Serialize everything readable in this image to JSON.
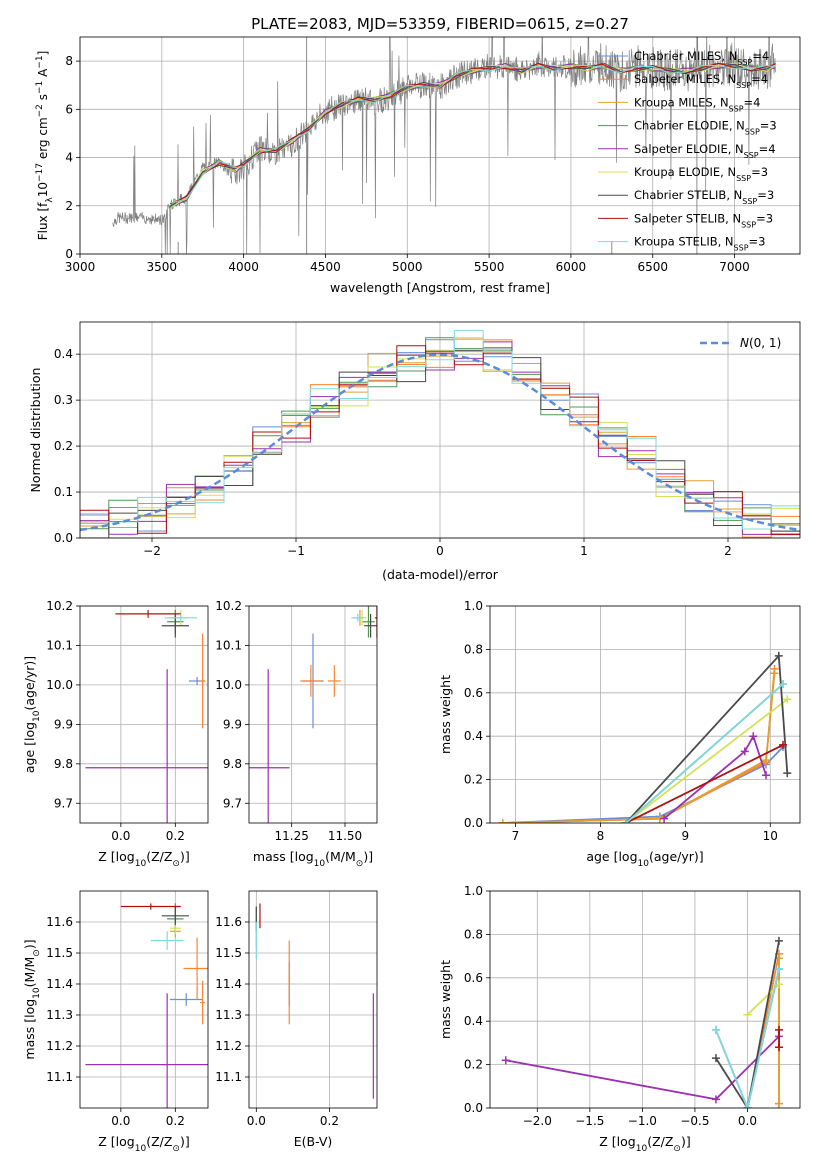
{
  "figure_title": "PLATE=2083, MJD=53359, FIBERID=0615, z=0.27",
  "series_styles": [
    {
      "name": "Chabrier MILES, N$_{SSP}$=4",
      "label_main": "Chabrier MILES, N",
      "label_sub": "SSP",
      "label_tail": "=4",
      "color": "#6b8fd6"
    },
    {
      "name": "Salpeter MILES, N$_{SSP}$=4",
      "label_main": "Salpeter MILES, N",
      "label_sub": "SSP",
      "label_tail": "=4",
      "color": "#ff8533"
    },
    {
      "name": "Kroupa MILES, N$_{SSP}$=4",
      "label_main": "Kroupa MILES, N",
      "label_sub": "SSP",
      "label_tail": "=4",
      "color": "#e0a030"
    },
    {
      "name": "Chabrier ELODIE, N$_{SSP}$=3",
      "label_main": "Chabrier ELODIE, N",
      "label_sub": "SSP",
      "label_tail": "=3",
      "color": "#4f9a4f"
    },
    {
      "name": "Salpeter ELODIE, N$_{SSP}$=4",
      "label_main": "Salpeter ELODIE, N",
      "label_sub": "SSP",
      "label_tail": "=4",
      "color": "#9b30b0"
    },
    {
      "name": "Kroupa ELODIE, N$_{SSP}$=3",
      "label_main": "Kroupa ELODIE, N",
      "label_sub": "SSP",
      "label_tail": "=3",
      "color": "#d4e157"
    },
    {
      "name": "Chabrier STELIB, N$_{SSP}$=3",
      "label_main": "Chabrier STELIB, N",
      "label_sub": "SSP",
      "label_tail": "=3",
      "color": "#4a4a4a"
    },
    {
      "name": "Salpeter STELIB, N$_{SSP}$=3",
      "label_main": "Salpeter STELIB, N",
      "label_sub": "SSP",
      "label_tail": "=3",
      "color": "#b01010"
    },
    {
      "name": "Kroupa STELIB, N$_{SSP}$=3",
      "label_main": "Kroupa STELIB, N",
      "label_sub": "SSP",
      "label_tail": "=3",
      "color": "#80d8e0"
    }
  ],
  "chart_data": [
    {
      "id": "spectrum",
      "type": "line",
      "title": "PLATE=2083, MJD=53359, FIBERID=0615, z=0.27",
      "xlabel": "wavelength [Angstrom, rest frame]",
      "ylabel": "Flux [f$_\\lambda$10$^{-17}$ erg cm$^{-2}$ s$^{-1}$ A$^{-1}$]",
      "ylabel_parts": [
        "Flux [f",
        "λ",
        "10",
        "−17",
        " erg cm",
        "−2",
        " s",
        "−1",
        " A",
        "−1",
        "]"
      ],
      "xlim": [
        3000,
        7400
      ],
      "ylim": [
        0,
        9
      ],
      "xticks": [
        3000,
        3500,
        4000,
        4500,
        5000,
        5500,
        6000,
        6500,
        7000
      ],
      "yticks": [
        0,
        2,
        4,
        6,
        8
      ],
      "legend": "top-right",
      "data_series_color": "#808080",
      "data_x": [
        3200,
        3230,
        3300,
        3400,
        3500,
        3550,
        3650,
        3750,
        3850,
        3900,
        3950,
        4000,
        4100,
        4200,
        4300,
        4400,
        4500,
        4600,
        4700,
        4800,
        4900,
        5000,
        5100,
        5200,
        5300,
        5400,
        5500,
        5600,
        5700,
        5800,
        5900,
        6000,
        6100,
        6200,
        6300,
        6400,
        6500,
        6600,
        6700,
        6800,
        6900,
        7000,
        7100,
        7200,
        7250
      ],
      "data_y": [
        1.3,
        1.5,
        1.5,
        1.5,
        1.4,
        2.0,
        2.4,
        3.6,
        3.8,
        3.5,
        3.4,
        3.6,
        4.4,
        4.2,
        4.6,
        5.3,
        5.9,
        6.2,
        6.4,
        6.3,
        6.5,
        6.9,
        7.0,
        6.9,
        7.4,
        7.6,
        7.8,
        7.8,
        7.6,
        7.9,
        7.7,
        7.8,
        7.7,
        7.9,
        7.6,
        7.7,
        7.7,
        7.6,
        7.6,
        7.8,
        7.8,
        7.9,
        7.7,
        7.7,
        7.9
      ],
      "model_x": [
        3550,
        3650,
        3750,
        3850,
        3950,
        4000,
        4100,
        4200,
        4300,
        4400,
        4500,
        4600,
        4700,
        4800,
        4900,
        5000,
        5100,
        5200,
        5300,
        5400,
        5500,
        5600,
        5700,
        5800,
        5900,
        6000,
        6100,
        6200,
        6300,
        6400,
        6500,
        6600,
        6700,
        6800,
        6900,
        7000,
        7100,
        7200,
        7250
      ],
      "model_y": [
        2.0,
        2.3,
        3.4,
        3.8,
        3.5,
        3.7,
        4.3,
        4.3,
        4.7,
        5.2,
        5.9,
        6.2,
        6.4,
        6.4,
        6.6,
        6.9,
        7.0,
        7.0,
        7.4,
        7.6,
        7.7,
        7.8,
        7.6,
        7.8,
        7.7,
        7.8,
        7.7,
        7.8,
        7.6,
        7.7,
        7.7,
        7.6,
        7.6,
        7.7,
        7.8,
        7.8,
        7.7,
        7.7,
        7.8
      ]
    },
    {
      "id": "residuals",
      "type": "line",
      "xlabel": "(data-model)/error",
      "ylabel": "Normed distribution",
      "xlim": [
        -2.5,
        2.5
      ],
      "ylim": [
        0,
        0.47
      ],
      "xticks": [
        -2,
        -1,
        0,
        1,
        2
      ],
      "yticks": [
        0.0,
        0.1,
        0.2,
        0.3,
        0.4
      ],
      "legend": "top-right",
      "normal_label": "N(0,1)",
      "normal_label_main": "N",
      "normal_label_tail": "(0, 1)",
      "bin_edges": [
        -2.5,
        -2.3,
        -2.1,
        -1.9,
        -1.7,
        -1.5,
        -1.3,
        -1.1,
        -0.9,
        -0.7,
        -0.5,
        -0.3,
        -0.1,
        0.1,
        0.3,
        0.5,
        0.7,
        0.9,
        1.1,
        1.3,
        1.5,
        1.7,
        1.9,
        2.1,
        2.3,
        2.5
      ],
      "hist_values": [
        0.03,
        0.04,
        0.05,
        0.08,
        0.11,
        0.15,
        0.2,
        0.25,
        0.29,
        0.33,
        0.36,
        0.38,
        0.4,
        0.41,
        0.4,
        0.36,
        0.31,
        0.27,
        0.22,
        0.18,
        0.13,
        0.09,
        0.06,
        0.04,
        0.03
      ]
    },
    {
      "id": "age-vs-z",
      "type": "scatter",
      "xlabel": "Z [log$_{10}$(Z/Z$_\\odot$)]",
      "xlabel_main": "Z [log",
      "xlabel_sub": "10",
      "xlabel_tail": "(Z/Z",
      "xlabel_sub2": "⊙",
      "xlabel_end": ")]",
      "ylabel": "age  [log$_{10}$(age/yr)]",
      "ylabel_main": "age  [log",
      "ylabel_sub": "10",
      "ylabel_tail": "(age/yr)]",
      "xlim": [
        -0.15,
        0.32
      ],
      "ylim": [
        9.65,
        10.2
      ],
      "xticks": [
        0.0,
        0.2
      ],
      "xticklabels": [
        "0.0",
        "0.2"
      ],
      "yticks": [
        9.7,
        9.8,
        9.9,
        10.0,
        10.1,
        10.2
      ],
      "points": [
        {
          "series": 0,
          "x": 0.28,
          "y": 10.01,
          "xerr": 0.03,
          "yerr": 0.01
        },
        {
          "series": 1,
          "x": 0.3,
          "y": 10.01,
          "xerr": 0.01,
          "yerr": 0.12
        },
        {
          "series": 2,
          "x": 0.2,
          "y": 10.17,
          "xerr": 0.02,
          "yerr": 0.02
        },
        {
          "series": 3,
          "x": 0.2,
          "y": 10.16,
          "xerr": 0.03,
          "yerr": 0.03
        },
        {
          "series": 4,
          "x": 0.17,
          "y": 9.79,
          "xerr": 0.3,
          "yerr": 0.25
        },
        {
          "series": 5,
          "x": 0.22,
          "y": 10.17,
          "xerr": 0.02,
          "yerr": 0.02
        },
        {
          "series": 6,
          "x": 0.2,
          "y": 10.15,
          "xerr": 0.05,
          "yerr": 0.03
        },
        {
          "series": 7,
          "x": 0.1,
          "y": 10.18,
          "xerr": 0.12,
          "yerr": 0.01
        },
        {
          "series": 8,
          "x": 0.22,
          "y": 10.17,
          "xerr": 0.06,
          "yerr": 0.01
        }
      ]
    },
    {
      "id": "age-vs-mass",
      "type": "scatter",
      "xlabel": "mass [log$_{10}$(M/M$_\\odot$)]",
      "xlabel_main": "mass [log",
      "xlabel_sub": "10",
      "xlabel_tail": "(M/M",
      "xlabel_sub2": "⊙",
      "xlabel_end": ")]",
      "xlim": [
        11.05,
        11.65
      ],
      "ylim": [
        9.65,
        10.2
      ],
      "xticks": [
        11.25,
        11.5
      ],
      "xticklabels": [
        "11.25",
        "11.50"
      ],
      "yticks": [
        9.7,
        9.8,
        9.9,
        10.0,
        10.1,
        10.2
      ],
      "points": [
        {
          "series": 0,
          "x": 11.35,
          "y": 10.01,
          "xerr": 0.05,
          "yerr": 0.12
        },
        {
          "series": 1,
          "x": 11.34,
          "y": 10.01,
          "xerr": 0.05,
          "yerr": 0.04
        },
        {
          "series": 2,
          "x": 11.57,
          "y": 10.17,
          "xerr": 0.02,
          "yerr": 0.02
        },
        {
          "series": 3,
          "x": 11.61,
          "y": 10.16,
          "xerr": 0.03,
          "yerr": 0.04
        },
        {
          "series": 4,
          "x": 11.14,
          "y": 9.79,
          "xerr": 0.1,
          "yerr": 0.25
        },
        {
          "series": 5,
          "x": 11.58,
          "y": 10.17,
          "xerr": 0.02,
          "yerr": 0.02
        },
        {
          "series": 6,
          "x": 11.62,
          "y": 10.15,
          "xerr": 0.03,
          "yerr": 0.03
        },
        {
          "series": 7,
          "x": 11.65,
          "y": 10.17,
          "xerr": 0.01,
          "yerr": 0.05
        },
        {
          "series": 8,
          "x": 11.56,
          "y": 10.17,
          "xerr": 0.03,
          "yerr": 0.01
        },
        {
          "series": 1,
          "x": 11.45,
          "y": 10.01,
          "xerr": 0.03,
          "yerr": 0.04
        }
      ]
    },
    {
      "id": "massweight-vs-age",
      "type": "line",
      "xlabel": "age  [log$_{10}$(age/yr)]",
      "xlabel_main": "age  [log",
      "xlabel_sub": "10",
      "xlabel_tail": "(age/yr)]",
      "ylabel": "mass weight",
      "xlim": [
        6.7,
        10.35
      ],
      "ylim": [
        0.0,
        1.0
      ],
      "xticks": [
        7,
        8,
        9,
        10
      ],
      "yticks": [
        0.0,
        0.2,
        0.4,
        0.6,
        0.8,
        1.0
      ],
      "series": [
        {
          "series": 0,
          "x": [
            6.85,
            8.7,
            9.95,
            10.15
          ],
          "y": [
            0.0,
            0.03,
            0.27,
            0.35
          ]
        },
        {
          "series": 1,
          "x": [
            6.85,
            8.7,
            9.95,
            10.05
          ],
          "y": [
            0.0,
            0.02,
            0.28,
            0.71
          ]
        },
        {
          "series": 2,
          "x": [
            6.85,
            8.7,
            9.95,
            10.05
          ],
          "y": [
            0.0,
            0.02,
            0.29,
            0.69
          ]
        },
        {
          "series": 3,
          "x": [
            8.3,
            10.15
          ],
          "y": [
            0.0,
            0.64
          ]
        },
        {
          "series": 4,
          "x": [
            8.75,
            9.7,
            9.8,
            9.95
          ],
          "y": [
            0.02,
            0.33,
            0.4,
            0.22
          ]
        },
        {
          "series": 5,
          "x": [
            8.3,
            10.2
          ],
          "y": [
            0.0,
            0.57
          ]
        },
        {
          "series": 6,
          "x": [
            8.3,
            10.1,
            10.2
          ],
          "y": [
            0.0,
            0.77,
            0.23
          ]
        },
        {
          "series": 7,
          "x": [
            8.3,
            10.15
          ],
          "y": [
            0.0,
            0.36
          ]
        },
        {
          "series": 8,
          "x": [
            8.3,
            10.15
          ],
          "y": [
            0.0,
            0.64
          ]
        }
      ]
    },
    {
      "id": "mass-vs-z",
      "type": "scatter",
      "xlabel": "Z [log$_{10}$(Z/Z$_\\odot$)]",
      "xlabel_main": "Z [log",
      "xlabel_sub": "10",
      "xlabel_tail": "(Z/Z",
      "xlabel_sub2": "⊙",
      "xlabel_end": ")]",
      "ylabel": "mass [log$_{10}$(M/M$_\\odot$)]",
      "ylabel_main": "mass [log",
      "ylabel_sub": "10",
      "ylabel_tail": "(M/M",
      "ylabel_sub2": "⊙",
      "ylabel_end": ")]",
      "xlim": [
        -0.15,
        0.32
      ],
      "ylim": [
        11.0,
        11.7
      ],
      "xticks": [
        0.0,
        0.2
      ],
      "xticklabels": [
        "0.0",
        "0.2"
      ],
      "yticks": [
        11.1,
        11.2,
        11.3,
        11.4,
        11.5,
        11.6
      ],
      "points": [
        {
          "series": 0,
          "x": 0.24,
          "y": 11.35,
          "xerr": 0.06,
          "yerr": 0.02
        },
        {
          "series": 1,
          "x": 0.3,
          "y": 11.34,
          "xerr": 0.01,
          "yerr": 0.07
        },
        {
          "series": 2,
          "x": 0.2,
          "y": 11.57,
          "xerr": 0.02,
          "yerr": 0.02
        },
        {
          "series": 3,
          "x": 0.2,
          "y": 11.61,
          "xerr": 0.03,
          "yerr": 0.05
        },
        {
          "series": 4,
          "x": 0.17,
          "y": 11.14,
          "xerr": 0.3,
          "yerr": 0.23
        },
        {
          "series": 5,
          "x": 0.2,
          "y": 11.58,
          "xerr": 0.02,
          "yerr": 0.02
        },
        {
          "series": 6,
          "x": 0.2,
          "y": 11.62,
          "xerr": 0.05,
          "yerr": 0.03
        },
        {
          "series": 7,
          "x": 0.11,
          "y": 11.65,
          "xerr": 0.11,
          "yerr": 0.01
        },
        {
          "series": 8,
          "x": 0.17,
          "y": 11.54,
          "xerr": 0.06,
          "yerr": 0.03
        },
        {
          "series": 1,
          "x": 0.28,
          "y": 11.45,
          "xerr": 0.05,
          "yerr": 0.1
        }
      ]
    },
    {
      "id": "mass-vs-ebv",
      "type": "scatter",
      "xlabel": "E(B-V)",
      "xlim": [
        -0.02,
        0.33
      ],
      "ylim": [
        11.0,
        11.7
      ],
      "xticks": [
        0.0,
        0.2
      ],
      "xticklabels": [
        "0.0",
        "0.2"
      ],
      "yticks": [
        11.1,
        11.2,
        11.3,
        11.4,
        11.5,
        11.6
      ],
      "points": [
        {
          "series": 0,
          "x": 0.09,
          "y": 11.4,
          "yerr": 0.07
        },
        {
          "series": 1,
          "x": 0.09,
          "y": 11.35,
          "yerr": 0.08
        },
        {
          "series": 2,
          "x": 0.0,
          "y": 11.57,
          "yerr": 0.05
        },
        {
          "series": 3,
          "x": 0.0,
          "y": 11.6,
          "yerr": 0.05
        },
        {
          "series": 4,
          "x": 0.32,
          "y": 11.2,
          "yerr": 0.17
        },
        {
          "series": 5,
          "x": 0.0,
          "y": 11.58,
          "yerr": 0.05
        },
        {
          "series": 6,
          "x": 0.0,
          "y": 11.61,
          "yerr": 0.04
        },
        {
          "series": 7,
          "x": 0.01,
          "y": 11.62,
          "yerr": 0.04
        },
        {
          "series": 8,
          "x": 0.0,
          "y": 11.54,
          "yerr": 0.06
        },
        {
          "series": 1,
          "x": 0.09,
          "y": 11.47,
          "yerr": 0.07
        }
      ]
    },
    {
      "id": "massweight-vs-z",
      "type": "line",
      "xlabel": "Z [log$_{10}$(Z/Z$_\\odot$)]",
      "xlabel_main": "Z [log",
      "xlabel_sub": "10",
      "xlabel_tail": "(Z/Z",
      "xlabel_sub2": "⊙",
      "xlabel_end": ")]",
      "ylabel": "mass weight",
      "xlim": [
        -2.45,
        0.5
      ],
      "ylim": [
        0.0,
        1.0
      ],
      "xticks": [
        -2.0,
        -1.5,
        -1.0,
        -0.5,
        0.0
      ],
      "xticklabels": [
        "−2.0",
        "−1.5",
        "−1.0",
        "−0.5",
        "0.0"
      ],
      "yticks": [
        0.0,
        0.2,
        0.4,
        0.6,
        0.8,
        1.0
      ],
      "series": [
        {
          "series": 0,
          "x": [
            -0.3,
            0.0,
            0.3
          ],
          "y": [
            0.36,
            0.0,
            0.64
          ]
        },
        {
          "series": 1,
          "x": [
            0.0,
            0.3,
            0.3
          ],
          "y": [
            0.0,
            0.71,
            0.02
          ]
        },
        {
          "series": 2,
          "x": [
            0.3,
            0.3
          ],
          "y": [
            0.02,
            0.69
          ]
        },
        {
          "series": 3,
          "x": [
            0.0,
            0.3
          ],
          "y": [
            0.0,
            0.64
          ]
        },
        {
          "series": 4,
          "x": [
            -2.3,
            -0.3,
            0.3
          ],
          "y": [
            0.22,
            0.04,
            0.33
          ]
        },
        {
          "series": 5,
          "x": [
            0.0,
            0.3
          ],
          "y": [
            0.43,
            0.57
          ]
        },
        {
          "series": 6,
          "x": [
            -0.3,
            0.0,
            0.3
          ],
          "y": [
            0.23,
            0.0,
            0.77
          ]
        },
        {
          "series": 7,
          "x": [
            0.3,
            0.3
          ],
          "y": [
            0.36,
            0.28
          ]
        },
        {
          "series": 8,
          "x": [
            -0.3,
            0.0,
            0.3
          ],
          "y": [
            0.36,
            0.0,
            0.64
          ]
        }
      ]
    }
  ]
}
